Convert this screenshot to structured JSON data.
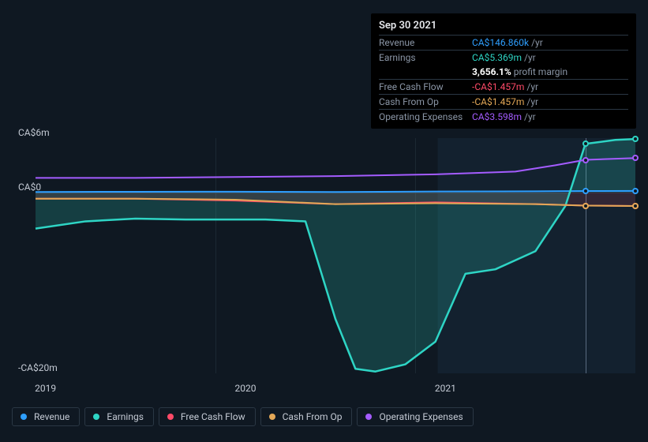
{
  "tooltip": {
    "date": "Sep 30 2021",
    "rows": [
      {
        "label": "Revenue",
        "value": "CA$146.860k",
        "color": "#2e9fff",
        "unit": "/yr"
      },
      {
        "label": "Earnings",
        "value": "CA$5.369m",
        "color": "#2ed5c5",
        "unit": "/yr"
      },
      {
        "label": "",
        "value": "3,656.1%",
        "color": "#ffffff",
        "unit": "profit margin",
        "pm": true
      },
      {
        "label": "Free Cash Flow",
        "value": "-CA$1.457m",
        "color": "#ff4a68",
        "unit": "/yr"
      },
      {
        "label": "Cash From Op",
        "value": "-CA$1.457m",
        "color": "#e3a857",
        "unit": "/yr"
      },
      {
        "label": "Operating Expenses",
        "value": "CA$3.598m",
        "color": "#a45cff",
        "unit": "/yr"
      }
    ]
  },
  "chart": {
    "type": "area-line",
    "ylim": [
      -20,
      6
    ],
    "ylabels": [
      {
        "text": "CA$6m",
        "y": 6
      },
      {
        "text": "CA$0",
        "y": 0
      },
      {
        "text": "-CA$20m",
        "y": -20
      }
    ],
    "xlim": [
      2019,
      2022
    ],
    "xlabels": [
      {
        "text": "2019",
        "x": 2019.05
      },
      {
        "text": "2020",
        "x": 2020.05
      },
      {
        "text": "2021",
        "x": 2021.05
      }
    ],
    "vgrid": [
      2019.9,
      2020.9
    ],
    "zero_line": 0,
    "guide_x": 2021.75,
    "background_color": "#0f1822",
    "future_pane_start": 2021.0,
    "series": [
      {
        "name": "revenue",
        "label": "Revenue",
        "color": "#2e9fff",
        "width": 2,
        "fill": false,
        "marker_y": 0.15,
        "data": [
          [
            2019.0,
            0.05
          ],
          [
            2019.5,
            0.07
          ],
          [
            2020.0,
            0.08
          ],
          [
            2020.5,
            0.05
          ],
          [
            2021.0,
            0.1
          ],
          [
            2021.5,
            0.12
          ],
          [
            2021.75,
            0.15
          ],
          [
            2022.0,
            0.17
          ]
        ]
      },
      {
        "name": "earnings",
        "label": "Earnings",
        "color": "#2ed5c5",
        "width": 2.5,
        "fill": true,
        "fill_opacity": 0.2,
        "marker_y": 5.37,
        "data": [
          [
            2019.0,
            -4.0
          ],
          [
            2019.25,
            -3.2
          ],
          [
            2019.5,
            -2.9
          ],
          [
            2019.75,
            -3.0
          ],
          [
            2020.0,
            -3.0
          ],
          [
            2020.15,
            -3.0
          ],
          [
            2020.35,
            -3.2
          ],
          [
            2020.5,
            -14.0
          ],
          [
            2020.6,
            -19.5
          ],
          [
            2020.7,
            -19.8
          ],
          [
            2020.85,
            -19.0
          ],
          [
            2021.0,
            -16.5
          ],
          [
            2021.15,
            -9.0
          ],
          [
            2021.3,
            -8.5
          ],
          [
            2021.5,
            -6.5
          ],
          [
            2021.65,
            -1.5
          ],
          [
            2021.75,
            5.37
          ],
          [
            2021.9,
            5.8
          ],
          [
            2022.0,
            5.9
          ]
        ]
      },
      {
        "name": "freecashflow",
        "label": "Free Cash Flow",
        "color": "#ff4a68",
        "width": 2,
        "fill": true,
        "fill_opacity": 0.13,
        "marker_y": -1.46,
        "data": [
          [
            2019.0,
            -0.7
          ],
          [
            2019.5,
            -0.7
          ],
          [
            2020.0,
            -0.9
          ],
          [
            2020.5,
            -1.3
          ],
          [
            2021.0,
            -1.1
          ],
          [
            2021.5,
            -1.3
          ],
          [
            2021.75,
            -1.46
          ],
          [
            2022.0,
            -1.5
          ]
        ]
      },
      {
        "name": "cashfromop",
        "label": "Cash From Op",
        "color": "#e3a857",
        "width": 2,
        "fill": false,
        "marker_y": -1.46,
        "data": [
          [
            2019.0,
            -0.7
          ],
          [
            2019.5,
            -0.7
          ],
          [
            2020.0,
            -0.8
          ],
          [
            2020.5,
            -1.3
          ],
          [
            2021.0,
            -1.2
          ],
          [
            2021.5,
            -1.3
          ],
          [
            2021.75,
            -1.46
          ],
          [
            2022.0,
            -1.5
          ]
        ]
      },
      {
        "name": "opex",
        "label": "Operating Expenses",
        "color": "#a45cff",
        "width": 2,
        "fill": false,
        "marker_y": 3.6,
        "data": [
          [
            2019.0,
            1.6
          ],
          [
            2019.5,
            1.6
          ],
          [
            2020.0,
            1.7
          ],
          [
            2020.5,
            1.8
          ],
          [
            2021.0,
            2.0
          ],
          [
            2021.4,
            2.3
          ],
          [
            2021.6,
            3.0
          ],
          [
            2021.75,
            3.6
          ],
          [
            2022.0,
            3.8
          ]
        ]
      }
    ]
  },
  "legend": [
    {
      "name": "revenue",
      "label": "Revenue",
      "color": "#2e9fff"
    },
    {
      "name": "earnings",
      "label": "Earnings",
      "color": "#2ed5c5"
    },
    {
      "name": "freecashflow",
      "label": "Free Cash Flow",
      "color": "#ff4a68"
    },
    {
      "name": "cashfromop",
      "label": "Cash From Op",
      "color": "#e3a857"
    },
    {
      "name": "opex",
      "label": "Operating Expenses",
      "color": "#a45cff"
    }
  ]
}
